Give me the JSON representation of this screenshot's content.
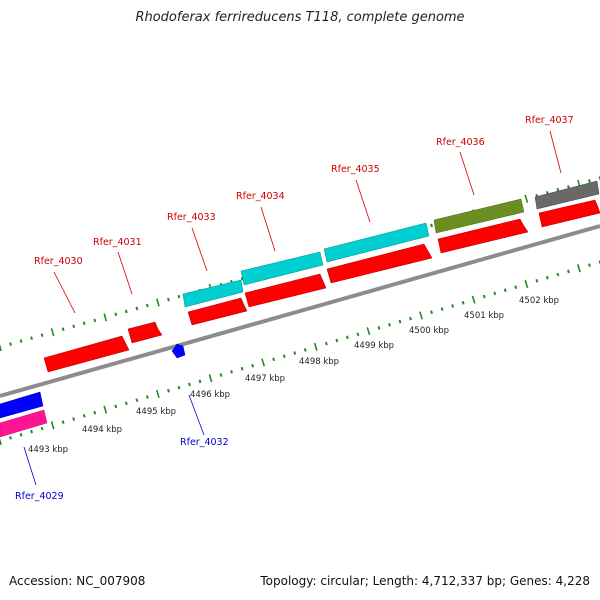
{
  "title": "Rhodoferax ferrireducens T118, complete genome",
  "accession": "Accession: NC_007908",
  "topology": "Topology: circular; Length: 4,712,337 bp; Genes: 4,228",
  "colors": {
    "forward_label": "#cc0000",
    "reverse_label": "#0000cc",
    "backbone": "#888888",
    "tick": "#228b22"
  },
  "genes": [
    {
      "label": "Rfer_4029",
      "strand": "reverse",
      "color": "#0000ff",
      "label_color": "#0000cc"
    },
    {
      "label": "Rfer_4029",
      "strand": "reverse",
      "color": "#ff1493",
      "label_color": "#0000cc"
    },
    {
      "label": "Rfer_4030",
      "strand": "forward",
      "color": "#ff0000",
      "label_color": "#cc0000"
    },
    {
      "label": "Rfer_4031",
      "strand": "forward",
      "color": "#ff0000",
      "label_color": "#cc0000"
    },
    {
      "label": "Rfer_4032",
      "strand": "reverse",
      "color": "#0000ff",
      "label_color": "#0000cc"
    },
    {
      "label": "Rfer_4033",
      "strand": "forward",
      "color": "#00ced1",
      "label_color": "#cc0000"
    },
    {
      "label": "Rfer_4034",
      "strand": "forward",
      "color": "#00ced1",
      "label_color": "#cc0000"
    },
    {
      "label": "Rfer_4035",
      "strand": "forward",
      "color": "#00ced1",
      "label_color": "#cc0000"
    },
    {
      "label": "Rfer_4036",
      "strand": "forward",
      "color": "#6b8e23",
      "label_color": "#cc0000"
    },
    {
      "label": "Rfer_4037",
      "strand": "forward",
      "color": "#696969",
      "label_color": "#cc0000"
    }
  ],
  "kbp_labels": [
    "4493 kbp",
    "4494 kbp",
    "4495 kbp",
    "4496 kbp",
    "4497 kbp",
    "4498 kbp",
    "4499 kbp",
    "4500 kbp",
    "4501 kbp",
    "4502 kbp"
  ]
}
